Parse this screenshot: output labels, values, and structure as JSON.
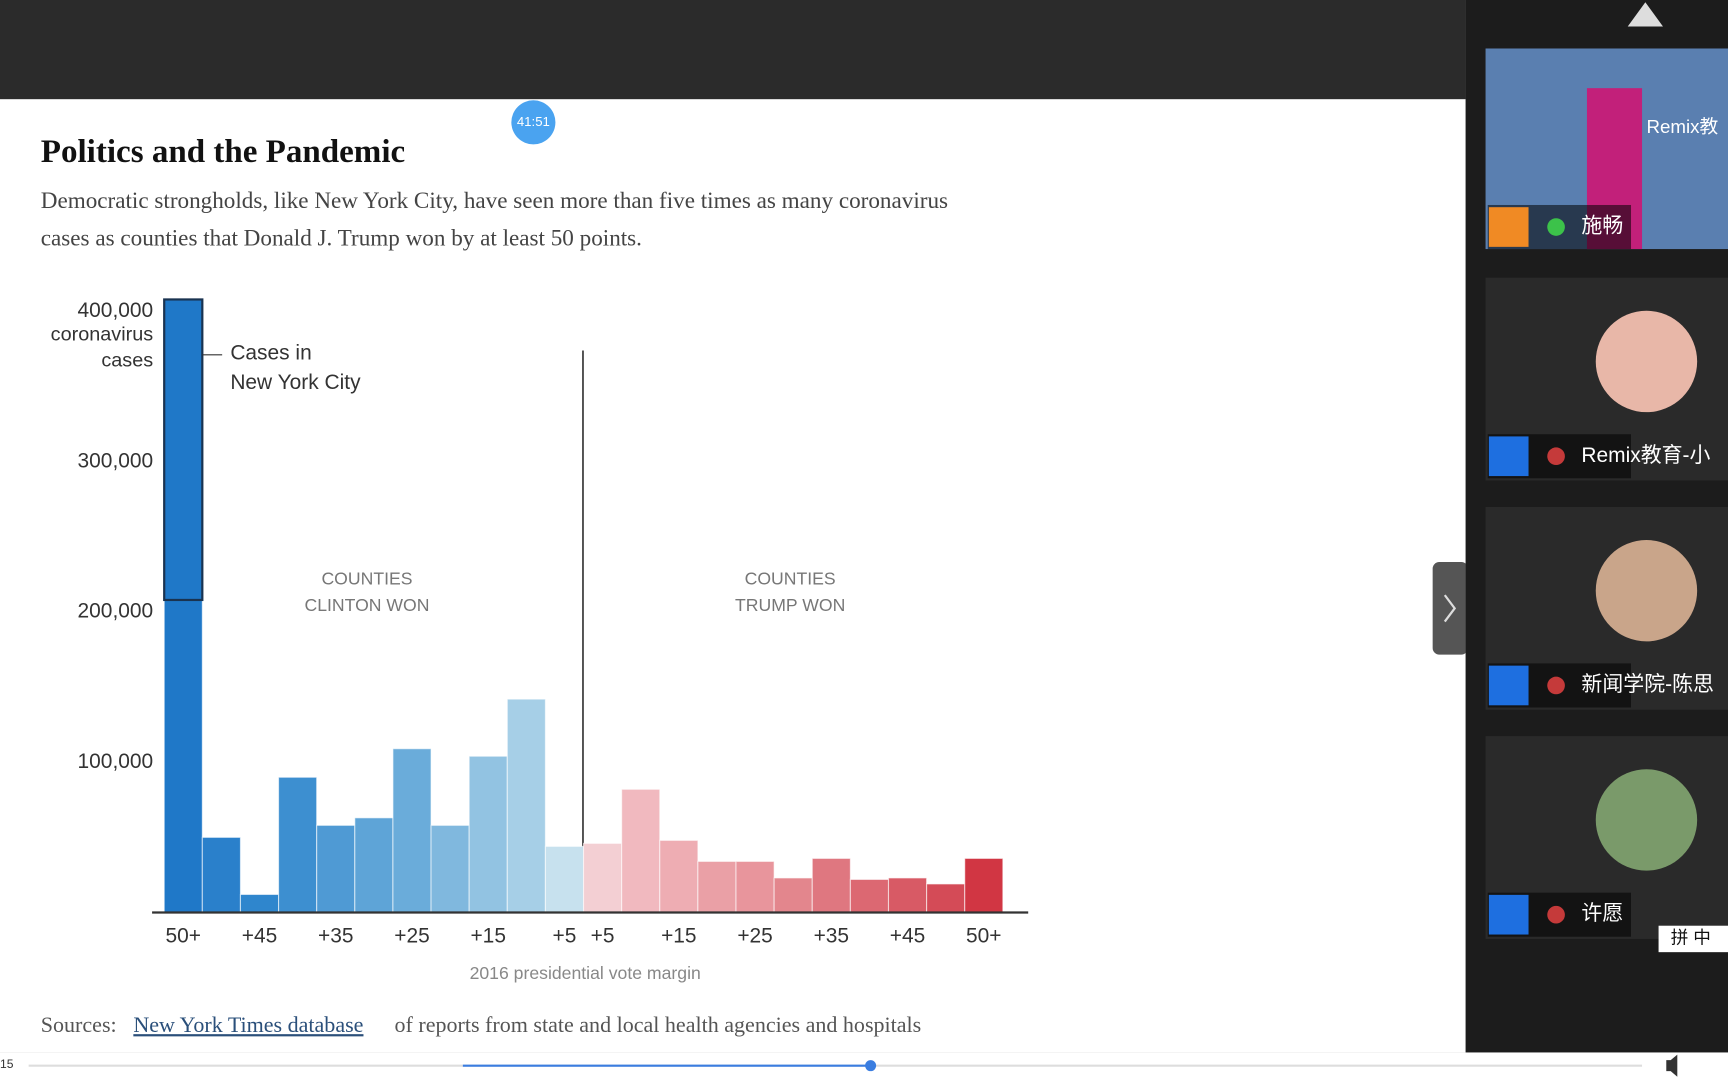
{
  "app": {
    "timer": "41:51",
    "progress_time": "15",
    "ime": "拼 中"
  },
  "participants": [
    {
      "name": "施畅",
      "overlay": "Remix教"
    },
    {
      "name": "Remix教育-小"
    },
    {
      "name": "新闻学院-陈思"
    },
    {
      "name": "许愿"
    }
  ],
  "chart_data": {
    "type": "bar",
    "title": "Politics and the Pandemic",
    "subtitle": [
      "Democratic strongholds, like New York City, have seen more than five times as many coronavirus",
      "cases as counties that Donald J. Trump won by at least 50 points."
    ],
    "y_label": [
      "coronavirus",
      "cases"
    ],
    "x_label": "2016 presidential vote margin",
    "regions": [
      [
        "COUNTIES",
        "CLINTON WON"
      ],
      [
        "COUNTIES",
        "TRUMP WON"
      ]
    ],
    "categories": [
      "50+",
      null,
      "+45",
      null,
      "+35",
      null,
      "+25",
      null,
      "+15",
      null,
      "+5",
      "+5",
      null,
      "+15",
      null,
      "+25",
      null,
      "+35",
      null,
      "+45",
      null,
      "50+"
    ],
    "values": [
      208000,
      50000,
      12000,
      90000,
      58000,
      63000,
      109000,
      58000,
      104000,
      142000,
      44000,
      46000,
      82000,
      48000,
      34000,
      34000,
      23000,
      36000,
      22000,
      23000,
      19000,
      36000
    ],
    "colors": [
      "#1f78c8",
      "#2a80cb",
      "#2f86cd",
      "#3d8fd0",
      "#4f9ad4",
      "#5ea4d7",
      "#6aacda",
      "#80b8de",
      "#92c3e2",
      "#a6cfe7",
      "#c7e1ee",
      "#f3cfd3",
      "#f1b9bf",
      "#eeadb3",
      "#eaa0a6",
      "#e8959c",
      "#e3868d",
      "#df7780",
      "#dc6872",
      "#d85a65",
      "#d44b57",
      "#d13643"
    ],
    "annotation": {
      "text": [
        "Cases in",
        "New York City"
      ],
      "value": 200000,
      "color": "#1f78c8"
    },
    "ylim": [
      0,
      410000
    ],
    "yticks": [
      {
        "value": 100000,
        "label": "100,000"
      },
      {
        "value": 200000,
        "label": "200,000"
      },
      {
        "value": 300000,
        "label": "300,000"
      },
      {
        "value": 400000,
        "label": "400,000"
      }
    ]
  },
  "source": {
    "label": "Sources:",
    "link": "New York Times database",
    "text": "of reports from state and local health agencies and hospitals"
  }
}
